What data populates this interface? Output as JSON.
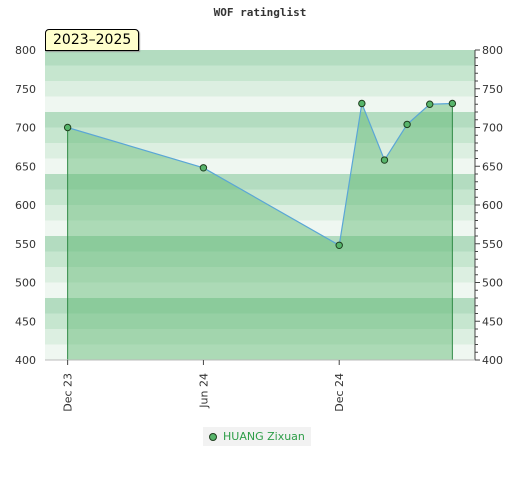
{
  "chart_data": {
    "type": "area",
    "title": "WOF ratinglist",
    "period_label": "2023–2025",
    "ylim": [
      400,
      800
    ],
    "y_ticks": [
      400,
      450,
      500,
      550,
      600,
      650,
      700,
      750,
      800
    ],
    "x_ticks": [
      {
        "label": "Dec 23",
        "date": "2023-12"
      },
      {
        "label": "Jun 24",
        "date": "2024-06"
      },
      {
        "label": "Dec 24",
        "date": "2024-12"
      }
    ],
    "xlim": [
      "2023-11",
      "2025-06"
    ],
    "series": [
      {
        "name": "HUANG Zixuan",
        "points": [
          {
            "date": "2023-12",
            "value": 700
          },
          {
            "date": "2024-06",
            "value": 648
          },
          {
            "date": "2024-12",
            "value": 548
          },
          {
            "date": "2025-01",
            "value": 731
          },
          {
            "date": "2025-02",
            "value": 658
          },
          {
            "date": "2025-03",
            "value": 704
          },
          {
            "date": "2025-04",
            "value": 730
          },
          {
            "date": "2025-05",
            "value": 731
          }
        ]
      }
    ],
    "legend_position": "bottom",
    "colors": {
      "line": "#5aa6d6",
      "fill": "#5cb56e",
      "marker": "#57b56b",
      "marker_stroke": "#1f3f1f",
      "accent_text": "#2e9e48"
    }
  }
}
